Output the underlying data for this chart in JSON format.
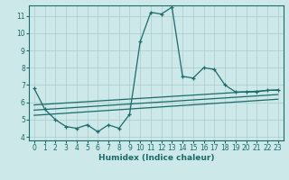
{
  "xlabel": "Humidex (Indice chaleur)",
  "background_color": "#cce8e8",
  "grid_color": "#aacccc",
  "line_color": "#1a6b6b",
  "xlim": [
    -0.5,
    23.5
  ],
  "ylim": [
    3.8,
    11.6
  ],
  "yticks": [
    4,
    5,
    6,
    7,
    8,
    9,
    10,
    11
  ],
  "xticks": [
    0,
    1,
    2,
    3,
    4,
    5,
    6,
    7,
    8,
    9,
    10,
    11,
    12,
    13,
    14,
    15,
    16,
    17,
    18,
    19,
    20,
    21,
    22,
    23
  ],
  "main_line_x": [
    0,
    1,
    2,
    3,
    4,
    5,
    6,
    7,
    8,
    9,
    10,
    11,
    12,
    13,
    14,
    15,
    16,
    17,
    18,
    19,
    20,
    21,
    22,
    23
  ],
  "main_line_y": [
    6.8,
    5.6,
    5.0,
    4.6,
    4.5,
    4.7,
    4.3,
    4.7,
    4.5,
    5.3,
    9.5,
    11.2,
    11.1,
    11.5,
    7.5,
    7.4,
    8.0,
    7.9,
    7.0,
    6.6,
    6.6,
    6.6,
    6.7,
    6.7
  ],
  "line1_x": [
    0,
    23
  ],
  "line1_y": [
    5.85,
    6.72
  ],
  "line2_x": [
    0,
    23
  ],
  "line2_y": [
    5.55,
    6.45
  ],
  "line3_x": [
    0,
    23
  ],
  "line3_y": [
    5.25,
    6.18
  ]
}
